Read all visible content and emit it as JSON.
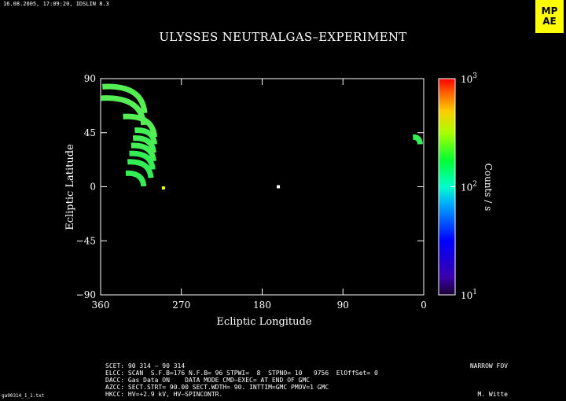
{
  "header": {
    "timestamp": "16.08.2005, 17:09:20, IDSLIN 8.3",
    "logo_lines": [
      "MP",
      "AE"
    ]
  },
  "chart_data": {
    "type": "heatmap",
    "title": "ULYSSES NEUTRALGAS–EXPERIMENT",
    "xlabel": "Ecliptic Longitude",
    "ylabel": "Ecliptic Latitude",
    "xlim": [
      360,
      0
    ],
    "ylim": [
      -90,
      90
    ],
    "x_ticks": [
      "360",
      "270",
      "180",
      "90",
      "0"
    ],
    "y_ticks": [
      "90",
      "45",
      "0",
      "−45",
      "−90"
    ],
    "colorbar": {
      "label": "Counts / s",
      "scale": "log",
      "range": [
        10,
        1000
      ],
      "ticks": [
        {
          "base": "10",
          "exp": "3"
        },
        {
          "base": "10",
          "exp": "2"
        },
        {
          "base": "10",
          "exp": "1"
        }
      ]
    },
    "scan_arcs": [
      {
        "lon_range": [
          312,
          332
        ],
        "lat": 3,
        "color": "#33ee55"
      },
      {
        "lon_range": [
          304,
          330
        ],
        "lat": 10,
        "color": "#33ee55"
      },
      {
        "lon_range": [
          302,
          328
        ],
        "lat": 17,
        "color": "#33ee55"
      },
      {
        "lon_range": [
          301,
          326
        ],
        "lat": 24,
        "color": "#44ee55"
      },
      {
        "lon_range": [
          301,
          324
        ],
        "lat": 31,
        "color": "#44ee55"
      },
      {
        "lon_range": [
          300,
          322
        ],
        "lat": 38,
        "color": "#44ee55"
      },
      {
        "lon_range": [
          300,
          335
        ],
        "lat": 44,
        "color": "#55ee55"
      },
      {
        "lon_range": [
          312,
          360
        ],
        "lat": 54,
        "color": "#55ee55"
      },
      {
        "lon_range": [
          311,
          358
        ],
        "lat": 64,
        "color": "#55ee55"
      },
      {
        "lon_range": [
          4,
          12
        ],
        "lat": 38,
        "color": "#33ee55"
      }
    ],
    "points": [
      {
        "lon": 290,
        "lat": -1,
        "color": "#ffff00"
      },
      {
        "lon": 162,
        "lat": 0,
        "color": "#ffffff"
      }
    ]
  },
  "footer": {
    "lines": [
      "SCET: 90 314 – 90 314",
      "ELCC: SCAN  S.F.B=176 N.F.B= 96 STPWI=  8  STPNO= 10   9756  ElOffSet= 0",
      "DACC: Gas Data ON    DATA MODE CMD–EXEC= AT END OF GMC",
      "AZCC: SECT.STRT= 90.00 SECT.WDTH= 90. INTTIM=GMC PMOV=1 GMC",
      "HKCC: HV=+2.9 kV, HV–SPINCONTR."
    ],
    "fov": "NARROW FOV",
    "author": "M. Witte",
    "file": "ga90314_1_1.txt"
  }
}
